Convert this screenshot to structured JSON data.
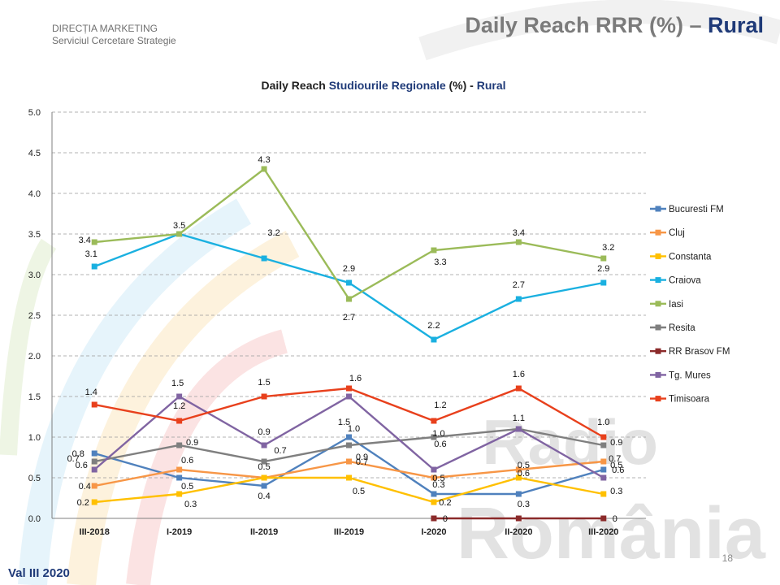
{
  "header": {
    "dept_line1": "DIRECȚIA  MARKETING",
    "dept_line2": "Serviciul  Cercetare  Strategie",
    "title_main": "Daily Reach RRR (%) – ",
    "title_accent": "Rural"
  },
  "footer": {
    "left": "Val III 2020",
    "page": "18"
  },
  "watermark": {
    "line1": "Radio",
    "line2": "România"
  },
  "colors": {
    "title_accent": "#1f3a78",
    "grid": "#9a9a9a"
  },
  "chart_data": {
    "type": "line",
    "title_part1": "Daily Reach ",
    "title_part2": "Studiourile Regionale",
    "title_part3": " (%) - ",
    "title_part4": "Rural",
    "categories": [
      "III-2018",
      "I-2019",
      "II-2019",
      "III-2019",
      "I-2020",
      "II-2020",
      "III-2020"
    ],
    "ylim": [
      0,
      5
    ],
    "yticks": [
      "0.0",
      "0.5",
      "1.0",
      "1.5",
      "2.0",
      "2.5",
      "3.0",
      "3.5",
      "4.0",
      "4.5",
      "5.0"
    ],
    "grid": true,
    "legend_position": "right",
    "series": [
      {
        "name": "Bucuresti FM",
        "color": "#4f81bd",
        "values": [
          0.8,
          0.5,
          0.4,
          1.0,
          0.3,
          0.3,
          0.6
        ],
        "labels": [
          "0.8",
          "0.5",
          "0.4",
          "1.0",
          "0.3",
          "0.3",
          "0.6"
        ]
      },
      {
        "name": "Cluj",
        "color": "#f79646",
        "values": [
          0.4,
          0.6,
          0.5,
          0.7,
          0.5,
          0.6,
          0.7
        ],
        "labels": [
          "0.4",
          "0.6",
          "0.5",
          "0.7",
          "0.5",
          "0.6",
          "0.7"
        ]
      },
      {
        "name": "Constanta",
        "color": "#ffc000",
        "values": [
          0.2,
          0.3,
          0.5,
          0.5,
          0.2,
          0.5,
          0.3
        ],
        "labels": [
          "0.2",
          "0.3",
          "",
          "0.5",
          "0.2",
          "0.5",
          "0.3"
        ]
      },
      {
        "name": "Craiova",
        "color": "#1ab0e0",
        "values": [
          3.1,
          3.5,
          3.2,
          2.9,
          2.2,
          2.7,
          2.9
        ],
        "labels": [
          "3.1",
          "",
          "3.2",
          "2.9",
          "2.2",
          "2.7",
          "2.9"
        ]
      },
      {
        "name": "Iasi",
        "color": "#9bbb59",
        "values": [
          3.4,
          3.5,
          4.3,
          2.7,
          3.3,
          3.4,
          3.2
        ],
        "labels": [
          "3.4",
          "3.5",
          "4.3",
          "2.7",
          "3.3",
          "3.4",
          "3.2"
        ]
      },
      {
        "name": "Resita",
        "color": "#7f7f7f",
        "values": [
          0.7,
          0.9,
          0.7,
          0.9,
          1.0,
          1.1,
          0.9
        ],
        "labels": [
          "0.7",
          "0.9",
          "0.7",
          "0.9",
          "1.0",
          "1.1",
          "0.9"
        ]
      },
      {
        "name": "RR Brasov FM",
        "color": "#8b2a2a",
        "values": [
          null,
          null,
          null,
          null,
          0,
          0,
          0
        ],
        "labels": [
          "",
          "",
          "",
          "",
          "0",
          "",
          "0"
        ]
      },
      {
        "name": "Tg. Mures",
        "color": "#8064a2",
        "values": [
          0.6,
          1.5,
          0.9,
          1.5,
          0.6,
          1.1,
          0.5
        ],
        "labels": [
          "0.6",
          "1.5",
          "0.9",
          "1.5",
          "0.6",
          "",
          "0.5"
        ]
      },
      {
        "name": "Timisoara",
        "color": "#e8401c",
        "values": [
          1.4,
          1.2,
          1.5,
          1.6,
          1.2,
          1.6,
          1.0
        ],
        "labels": [
          "1.4",
          "1.2",
          "1.5",
          "1.6",
          "1.2",
          "1.6",
          "1.0"
        ]
      }
    ]
  }
}
